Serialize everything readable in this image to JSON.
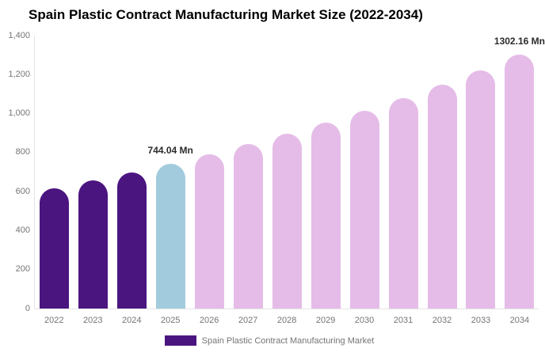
{
  "chart_data": {
    "type": "bar",
    "title": "Spain Plastic Contract Manufacturing Market Size (2022-2034)",
    "xlabel": "",
    "ylabel": "",
    "value_unit": "Mn",
    "categories": [
      "2022",
      "2023",
      "2024",
      "2025",
      "2026",
      "2027",
      "2028",
      "2029",
      "2030",
      "2031",
      "2032",
      "2033",
      "2034"
    ],
    "values": [
      617.5,
      657.1,
      699.2,
      744.04,
      791.7,
      842.5,
      896.5,
      954.0,
      1015.2,
      1080.3,
      1149.5,
      1223.2,
      1302.16
    ],
    "bar_roles": [
      "historical",
      "historical",
      "historical",
      "highlight",
      "forecast",
      "forecast",
      "forecast",
      "forecast",
      "forecast",
      "forecast",
      "forecast",
      "forecast",
      "forecast"
    ],
    "role_colors": {
      "historical": "#4B1580",
      "highlight": "#A3CBDE",
      "forecast": "#E5BCE8"
    },
    "annotations": [
      {
        "category": "2025",
        "text": "744.04 Mn"
      },
      {
        "category": "2034",
        "text": "1302.16 Mn"
      }
    ],
    "ylim": [
      0,
      1400
    ],
    "ytick_values": [
      0,
      200,
      400,
      600,
      800,
      1000,
      1200,
      1400
    ],
    "ytick_labels": [
      "0",
      "200",
      "400",
      "600",
      "800",
      "1,000",
      "1,200",
      "1,400"
    ],
    "grid": false,
    "legend_position": "bottom"
  },
  "legend": {
    "label": "Spain Plastic Contract Manufacturing Market",
    "swatch_color": "#4B1580"
  },
  "axis_colors": {
    "line": "#e3e3e3",
    "tick_text": "#757575"
  }
}
